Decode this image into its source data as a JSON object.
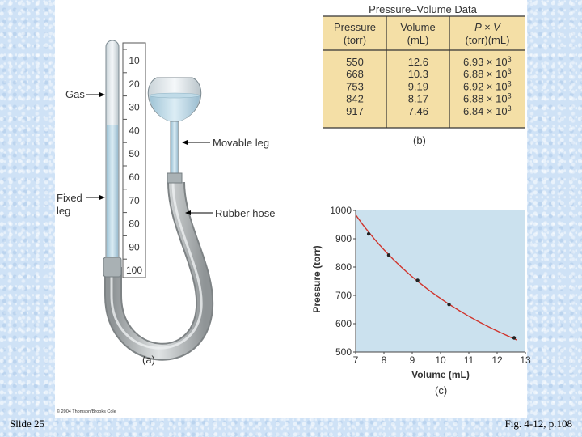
{
  "slide_label": "Slide 25",
  "figure_ref": "Fig. 4-12, p.108",
  "copyright": "© 2004 Thomson/Brooks Cole",
  "apparatus": {
    "scale_ticks": [
      "10",
      "20",
      "30",
      "40",
      "50",
      "60",
      "70",
      "80",
      "90",
      "100"
    ],
    "label_gas": "Gas",
    "label_fixed_line1": "Fixed",
    "label_fixed_line2": "leg",
    "label_movable": "Movable leg",
    "label_hose": "Rubber hose",
    "caption": "(a)"
  },
  "table": {
    "title": "Pressure–Volume Data",
    "headers": [
      {
        "line1": "Pressure",
        "line2": "(torr)"
      },
      {
        "line1": "Volume",
        "line2": "(mL)"
      },
      {
        "line1": "P × V",
        "line2": "(torr)(mL)"
      }
    ],
    "rows": [
      {
        "pressure": "550",
        "volume": "12.6",
        "pv": "6.93 × 10",
        "exp": "3"
      },
      {
        "pressure": "668",
        "volume": "10.3",
        "pv": "6.88 × 10",
        "exp": "3"
      },
      {
        "pressure": "753",
        "volume": "9.19",
        "pv": "6.92 × 10",
        "exp": "3"
      },
      {
        "pressure": "842",
        "volume": "8.17",
        "pv": "6.88 × 10",
        "exp": "3"
      },
      {
        "pressure": "917",
        "volume": "7.46",
        "pv": "6.84 × 10",
        "exp": "3"
      }
    ],
    "caption": "(b)",
    "bg_color": "#f4dfa6"
  },
  "chart_data": {
    "type": "scatter",
    "title": "",
    "xlabel": "Volume (mL)",
    "ylabel": "Pressure (torr)",
    "xlim": [
      7,
      13
    ],
    "ylim": [
      500,
      1000
    ],
    "x_ticks": [
      "7",
      "8",
      "9",
      "10",
      "11",
      "12",
      "13"
    ],
    "y_ticks": [
      "500",
      "600",
      "700",
      "800",
      "900",
      "1000"
    ],
    "x": [
      12.6,
      10.3,
      9.19,
      8.17,
      7.46
    ],
    "y": [
      550,
      668,
      753,
      842,
      917
    ],
    "fit_curve": "P = 6890 / V",
    "caption": "(c)",
    "plot_bg": "#cbe1ee",
    "curve_color": "#d0342c",
    "point_color": "#222222"
  }
}
